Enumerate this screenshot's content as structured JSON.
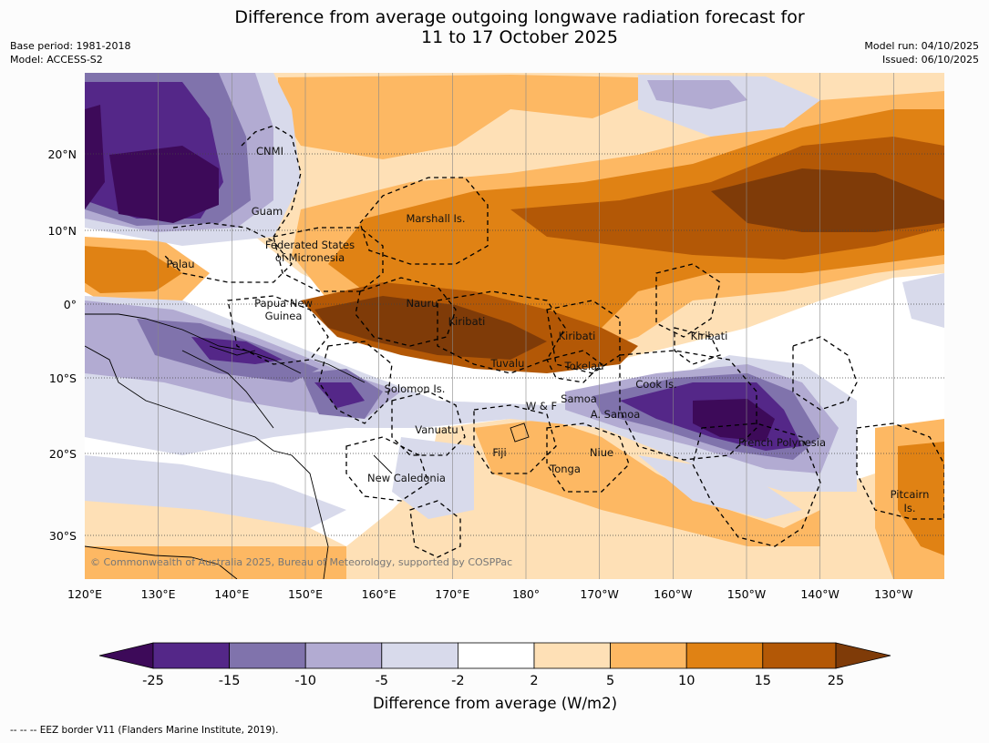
{
  "title": {
    "line1": "Difference from average outgoing longwave radiation forecast for",
    "line2": "11 to 17 October 2025"
  },
  "meta_left": {
    "base_period": "Base period: 1981-2018",
    "model": "Model: ACCESS-S2"
  },
  "meta_right": {
    "model_run": "Model run: 04/10/2025",
    "issued": "Issued: 06/10/2025"
  },
  "map": {
    "lon_labels": [
      "120°E",
      "130°E",
      "140°E",
      "150°E",
      "160°E",
      "170°E",
      "180°",
      "170°W",
      "160°W",
      "150°W",
      "140°W",
      "130°W"
    ],
    "lat_labels": [
      "20°N",
      "10°N",
      "0°",
      "10°S",
      "20°S",
      "30°S"
    ],
    "places": [
      {
        "id": "cnmi",
        "text": "CNMI"
      },
      {
        "id": "guam",
        "text": "Guam"
      },
      {
        "id": "marshall",
        "text": "Marshall Is."
      },
      {
        "id": "fsm1",
        "text": "Federated States"
      },
      {
        "id": "fsm2",
        "text": "of Micronesia"
      },
      {
        "id": "palau",
        "text": "Palau"
      },
      {
        "id": "png1",
        "text": "Papua New"
      },
      {
        "id": "png2",
        "text": "Guinea"
      },
      {
        "id": "nauru",
        "text": "Nauru"
      },
      {
        "id": "kiribati1",
        "text": "Kiribati"
      },
      {
        "id": "kiribati2",
        "text": "Kiribati"
      },
      {
        "id": "kiribati3",
        "text": "Kiribati"
      },
      {
        "id": "tuvalu",
        "text": "Tuvalu"
      },
      {
        "id": "tokelau",
        "text": "Tokelau"
      },
      {
        "id": "cook",
        "text": "Cook Is."
      },
      {
        "id": "solomon",
        "text": "Solomon Is."
      },
      {
        "id": "samoa",
        "text": "Samoa"
      },
      {
        "id": "wf",
        "text": "W & F"
      },
      {
        "id": "asamoa",
        "text": "A. Samoa"
      },
      {
        "id": "vanuatu",
        "text": "Vanuatu"
      },
      {
        "id": "frpoly",
        "text": "French Polynesia"
      },
      {
        "id": "fiji",
        "text": "Fiji"
      },
      {
        "id": "niue",
        "text": "Niue"
      },
      {
        "id": "tonga",
        "text": "Tonga"
      },
      {
        "id": "newcal",
        "text": "New Caledonia"
      },
      {
        "id": "pitcairn1",
        "text": "Pitcairn"
      },
      {
        "id": "pitcairn2",
        "text": "Is."
      }
    ],
    "copyright": "© Commonwealth of Australia 2025, Bureau of Meteorology, supported by COSPPac"
  },
  "colorbar": {
    "ticks": [
      "-25",
      "-15",
      "-10",
      "-5",
      "-2",
      "2",
      "5",
      "10",
      "15",
      "25"
    ],
    "colors": [
      "#3d0a59",
      "#542788",
      "#8073ac",
      "#b2abd2",
      "#d8daeb",
      "#ffffff",
      "#fee0b6",
      "#fdb863",
      "#e08214",
      "#b35806",
      "#7f3b08"
    ],
    "label": "Difference from average (W/m2)"
  },
  "footer": "--  --  -- EEZ border V11 (Flanders Marine Institute, 2019)."
}
